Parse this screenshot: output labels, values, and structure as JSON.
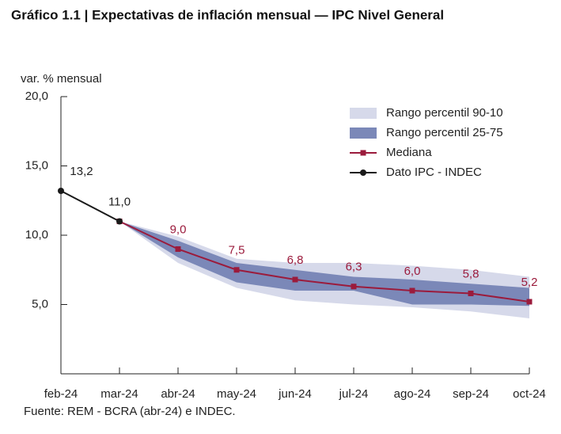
{
  "chart_data": {
    "type": "line",
    "title": "Gráfico 1.1 | Expectativas de inflación mensual — IPC Nivel General",
    "y_label": "var. % mensual",
    "source": "Fuente: REM - BCRA (abr-24) e INDEC.",
    "categories": [
      "feb-24",
      "mar-24",
      "abr-24",
      "may-24",
      "jun-24",
      "jul-24",
      "ago-24",
      "sep-24",
      "oct-24"
    ],
    "ylim": [
      0,
      20
    ],
    "yticks": [
      {
        "value": 5,
        "label": "5,0"
      },
      {
        "value": 10,
        "label": "10,0"
      },
      {
        "value": 15,
        "label": "15,0"
      },
      {
        "value": 20,
        "label": "20,0"
      }
    ],
    "bands": [
      {
        "name": "Rango percentil 90-10",
        "color": "#d6d9ea",
        "high": [
          null,
          11,
          9.9,
          8.3,
          8.0,
          8.0,
          7.8,
          7.5,
          7.0
        ],
        "low": [
          null,
          11,
          8.0,
          6.2,
          5.3,
          5.0,
          4.8,
          4.5,
          4.0
        ]
      },
      {
        "name": "Rango percentil 25-75",
        "color": "#7b88b8",
        "high": [
          null,
          11,
          9.6,
          8.0,
          7.5,
          7.0,
          6.8,
          6.5,
          6.2
        ],
        "low": [
          null,
          11,
          8.4,
          6.6,
          6.0,
          6.0,
          5.0,
          5.0,
          4.9
        ]
      }
    ],
    "series": [
      {
        "name": "Mediana",
        "color": "#9b1b3c",
        "marker": "square",
        "values": [
          null,
          11.0,
          9.0,
          7.5,
          6.8,
          6.3,
          6.0,
          5.8,
          5.2
        ],
        "value_labels": [
          null,
          null,
          "9,0",
          "7,5",
          "6,8",
          "6,3",
          "6,0",
          "5,8",
          "5,2"
        ]
      },
      {
        "name": "Dato IPC - INDEC",
        "color": "#1a1a1a",
        "marker": "circle",
        "values": [
          13.2,
          11.0,
          null,
          null,
          null,
          null,
          null,
          null,
          null
        ],
        "value_labels": [
          "13,2",
          "11,0",
          null,
          null,
          null,
          null,
          null,
          null,
          null
        ]
      }
    ]
  }
}
